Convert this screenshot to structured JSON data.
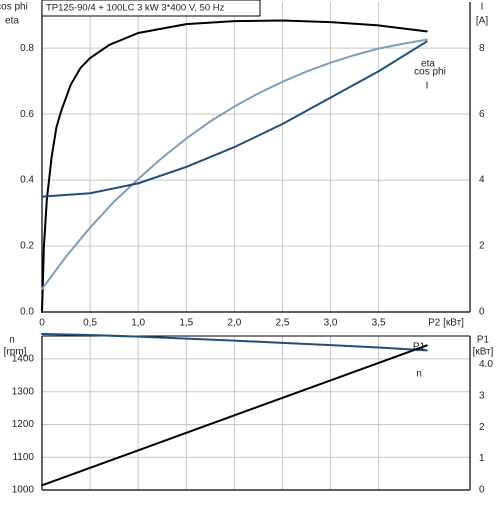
{
  "colors": {
    "grid": "#c8c8c8",
    "axis": "#000000",
    "black_curve": "#000000",
    "light_blue_curve": "#7f9fbd",
    "dark_blue_curve": "#1f4f7a"
  },
  "header": {
    "title": "TP125-90/4 + 100LC   3 kW   3*400 V, 50 Hz"
  },
  "chart_data": [
    {
      "type": "line",
      "title": "TP125-90/4 + 100LC   3 kW   3*400 V, 50 Hz",
      "xlabel": "P2 [кВт]",
      "ylabel": [
        "cos phi",
        "eta"
      ],
      "y2label": [
        "I",
        "[A]"
      ],
      "xlim": [
        0,
        4.45
      ],
      "ylim": [
        0,
        0.94
      ],
      "y2lim": [
        0,
        9.4
      ],
      "x_ticks": [
        "0",
        "0,5",
        "1,0",
        "1,5",
        "2,0",
        "2,5",
        "3,0",
        "3,5"
      ],
      "y_ticks": [
        "0.0",
        "0.2",
        "0.4",
        "0.6",
        "0.8"
      ],
      "y2_ticks": [
        "0",
        "2",
        "4",
        "6",
        "8"
      ],
      "grid": true,
      "series": [
        {
          "name": "eta",
          "axis": "left",
          "x": [
            0,
            0.02,
            0.05,
            0.1,
            0.15,
            0.2,
            0.3,
            0.4,
            0.5,
            0.7,
            1.0,
            1.5,
            2.0,
            2.5,
            3.0,
            3.5,
            4.0
          ],
          "y": [
            0.0,
            0.2,
            0.34,
            0.47,
            0.56,
            0.61,
            0.69,
            0.74,
            0.77,
            0.81,
            0.846,
            0.873,
            0.882,
            0.884,
            0.879,
            0.869,
            0.851
          ]
        },
        {
          "name": "cos phi",
          "axis": "left",
          "x": [
            0,
            0.25,
            0.5,
            0.75,
            1.0,
            1.25,
            1.5,
            1.75,
            2.0,
            2.25,
            2.5,
            2.75,
            3.0,
            3.25,
            3.5,
            3.75,
            4.0
          ],
          "y": [
            0.07,
            0.168,
            0.256,
            0.335,
            0.403,
            0.468,
            0.526,
            0.578,
            0.623,
            0.663,
            0.698,
            0.729,
            0.756,
            0.779,
            0.799,
            0.813,
            0.826
          ]
        },
        {
          "name": "I",
          "axis": "right",
          "x": [
            0,
            0.5,
            1.0,
            1.5,
            2.0,
            2.5,
            3.0,
            3.5,
            4.0
          ],
          "y": [
            3.5,
            3.6,
            3.9,
            4.4,
            5.0,
            5.7,
            6.5,
            7.3,
            8.2
          ]
        }
      ]
    },
    {
      "type": "line",
      "xlim": [
        0,
        4.45
      ],
      "ylabel": [
        "n",
        "[rpm]"
      ],
      "y2label": [
        "P1",
        "[кВт]"
      ],
      "ylim": [
        1000,
        1470
      ],
      "y2lim": [
        0,
        4.9
      ],
      "y_ticks": [
        "1000",
        "1100",
        "1200",
        "1300",
        "1400"
      ],
      "y2_ticks": [
        "0",
        "1",
        "2",
        "3",
        "4.0"
      ],
      "grid": true,
      "series": [
        {
          "name": "n",
          "axis": "left",
          "x": [
            0,
            0.5,
            1.0,
            1.5,
            2.0,
            2.5,
            3.0,
            3.5,
            4.0
          ],
          "y": [
            1476,
            1473,
            1468,
            1462,
            1456,
            1449,
            1442,
            1435,
            1426
          ]
        },
        {
          "name": "P1",
          "axis": "right",
          "x": [
            0,
            4.0
          ],
          "y": [
            0.15,
            4.6
          ]
        }
      ]
    }
  ]
}
